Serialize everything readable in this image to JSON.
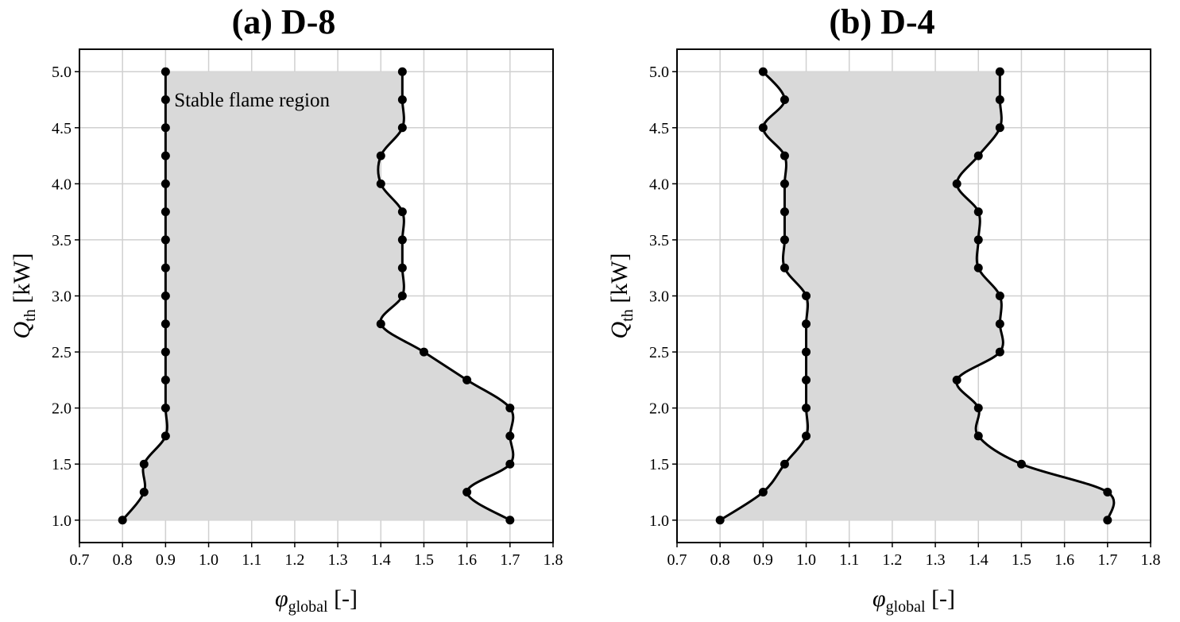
{
  "chart_data": [
    {
      "type": "line",
      "title": "(a) D-8",
      "xlabel": "φ",
      "xlabel_sub": "global",
      "xlabel_unit": " [-]",
      "ylabel": "Q",
      "ylabel_sub": "th",
      "ylabel_unit": " [kW]",
      "xlim": [
        0.7,
        1.8
      ],
      "ylim": [
        0.8,
        5.2
      ],
      "xticks": [
        0.7,
        0.8,
        0.9,
        1.0,
        1.1,
        1.2,
        1.3,
        1.4,
        1.5,
        1.6,
        1.7,
        1.8
      ],
      "yticks": [
        1.0,
        1.5,
        2.0,
        2.5,
        3.0,
        3.5,
        4.0,
        4.5,
        5.0
      ],
      "grid": true,
      "annotation": "Stable flame region",
      "series": [
        {
          "y": [
            1.0,
            1.25,
            1.5,
            1.75,
            2.0,
            2.25,
            2.5,
            2.75,
            3.0,
            3.25,
            3.5,
            3.75,
            4.0,
            4.25,
            4.5,
            4.75,
            5.0
          ],
          "x": [
            0.8,
            0.85,
            0.85,
            0.9,
            0.9,
            0.9,
            0.9,
            0.9,
            0.9,
            0.9,
            0.9,
            0.9,
            0.9,
            0.9,
            0.9,
            0.9,
            0.9
          ]
        },
        {
          "y": [
            1.0,
            1.25,
            1.5,
            1.75,
            2.0,
            2.25,
            2.5,
            2.75,
            3.0,
            3.25,
            3.5,
            3.75,
            4.0,
            4.25,
            4.5,
            4.75,
            5.0
          ],
          "x": [
            1.7,
            1.6,
            1.7,
            1.7,
            1.7,
            1.6,
            1.5,
            1.4,
            1.45,
            1.45,
            1.45,
            1.45,
            1.4,
            1.4,
            1.45,
            1.45,
            1.45
          ]
        }
      ]
    },
    {
      "type": "line",
      "title": "(b) D-4",
      "xlabel": "φ",
      "xlabel_sub": "global",
      "xlabel_unit": " [-]",
      "ylabel": "Q",
      "ylabel_sub": "th",
      "ylabel_unit": " [kW]",
      "xlim": [
        0.7,
        1.8
      ],
      "ylim": [
        0.8,
        5.2
      ],
      "xticks": [
        0.7,
        0.8,
        0.9,
        1.0,
        1.1,
        1.2,
        1.3,
        1.4,
        1.5,
        1.6,
        1.7,
        1.8
      ],
      "yticks": [
        1.0,
        1.5,
        2.0,
        2.5,
        3.0,
        3.5,
        4.0,
        4.5,
        5.0
      ],
      "grid": true,
      "annotation": "",
      "series": [
        {
          "y": [
            1.0,
            1.25,
            1.5,
            1.75,
            2.0,
            2.25,
            2.5,
            2.75,
            3.0,
            3.25,
            3.5,
            3.75,
            4.0,
            4.25,
            4.5,
            4.75,
            5.0
          ],
          "x": [
            0.8,
            0.9,
            0.95,
            1.0,
            1.0,
            1.0,
            1.0,
            1.0,
            1.0,
            0.95,
            0.95,
            0.95,
            0.95,
            0.95,
            0.9,
            0.95,
            0.9
          ]
        },
        {
          "y": [
            1.0,
            1.25,
            1.5,
            1.75,
            2.0,
            2.25,
            2.5,
            2.75,
            3.0,
            3.25,
            3.5,
            3.75,
            4.0,
            4.25,
            4.5,
            4.75,
            5.0
          ],
          "x": [
            1.7,
            1.7,
            1.5,
            1.4,
            1.4,
            1.35,
            1.45,
            1.45,
            1.45,
            1.4,
            1.4,
            1.4,
            1.35,
            1.4,
            1.45,
            1.45,
            1.45
          ]
        }
      ]
    }
  ]
}
